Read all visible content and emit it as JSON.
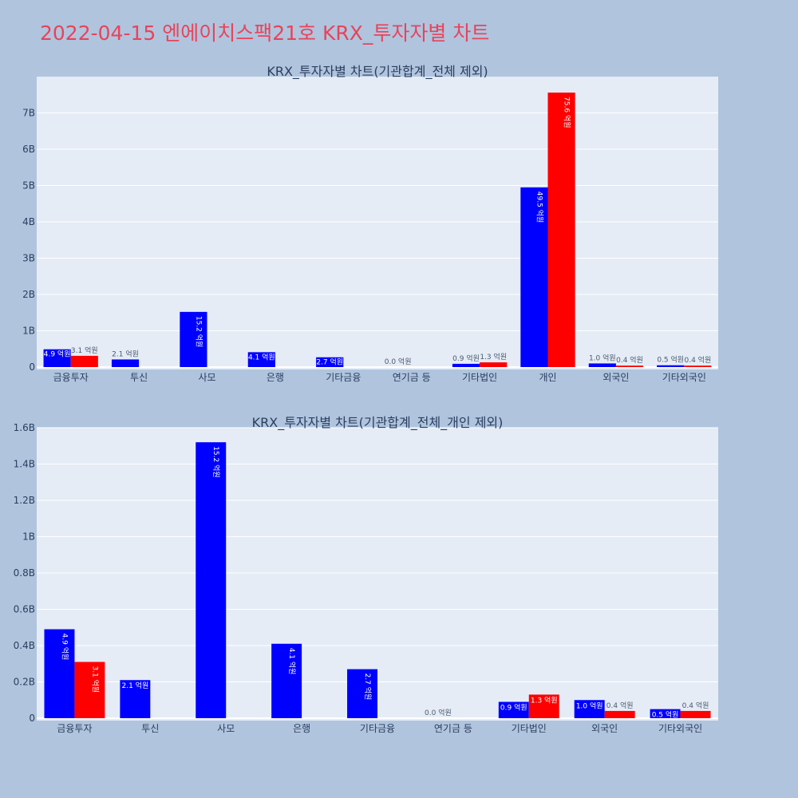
{
  "page": {
    "title": "2022-04-15 엔에이치스팩21호 KRX_투자자별 차트"
  },
  "colors": {
    "buy": "#0000ff",
    "sell": "#ff0000",
    "plot_bg": "#e5ecf6",
    "page_bg": "#b0c4de",
    "title": "#e8445a"
  },
  "chart_data": [
    {
      "type": "bar",
      "title": "KRX_투자자별 차트(기관합계_전체 제외)",
      "categories": [
        "금융투자",
        "투신",
        "사모",
        "은행",
        "기타금융",
        "연기금 등",
        "기타법인",
        "개인",
        "외국인",
        "기타외국인"
      ],
      "series": [
        {
          "values": [
            490000000,
            210000000,
            1520000000,
            410000000,
            270000000,
            0,
            90000000,
            4950000000,
            100000000,
            50000000
          ],
          "labels": [
            "4.9 억원",
            "2.1 억원",
            "15.2 억원",
            "4.1 억원",
            "2.7 억원",
            "0.0 억원",
            "0.9 억원",
            "49.5 억원",
            "1.0 억원",
            "0.5 억원"
          ]
        },
        {
          "values": [
            310000000,
            0,
            0,
            0,
            0,
            0,
            130000000,
            7560000000,
            40000000,
            40000000
          ],
          "labels": [
            "3.1 억원",
            "",
            "",
            "",
            "",
            "",
            "1.3 억원",
            "75.6 억원",
            "0.4 억원",
            "0.4 억원"
          ]
        }
      ],
      "ylim": [
        0,
        8000000000
      ],
      "ticks": [
        {
          "v": 0,
          "t": "0"
        },
        {
          "v": 1000000000,
          "t": "1B"
        },
        {
          "v": 2000000000,
          "t": "2B"
        },
        {
          "v": 3000000000,
          "t": "3B"
        },
        {
          "v": 4000000000,
          "t": "4B"
        },
        {
          "v": 5000000000,
          "t": "5B"
        },
        {
          "v": 6000000000,
          "t": "6B"
        },
        {
          "v": 7000000000,
          "t": "7B"
        }
      ],
      "grid": true,
      "legend": "none"
    },
    {
      "type": "bar",
      "title": "KRX_투자자별 차트(기관합계_전체_개인 제외)",
      "categories": [
        "금융투자",
        "투신",
        "사모",
        "은행",
        "기타금융",
        "연기금 등",
        "기타법인",
        "외국인",
        "기타외국인"
      ],
      "series": [
        {
          "values": [
            490000000,
            210000000,
            1520000000,
            410000000,
            270000000,
            0,
            90000000,
            100000000,
            50000000
          ],
          "labels": [
            "4.9 억원",
            "2.1 억원",
            "15.2 억원",
            "4.1 억원",
            "2.7 억원",
            "0.0 억원",
            "0.9 억원",
            "1.0 억원",
            "0.5 억원"
          ]
        },
        {
          "values": [
            310000000,
            0,
            0,
            0,
            0,
            0,
            130000000,
            40000000,
            40000000
          ],
          "labels": [
            "3.1 억원",
            "",
            "",
            "",
            "",
            "",
            "1.3 억원",
            "0.4 억원",
            "0.4 억원"
          ]
        }
      ],
      "ylim": [
        0,
        1600000000
      ],
      "ticks": [
        {
          "v": 0,
          "t": "0"
        },
        {
          "v": 200000000,
          "t": "0.2B"
        },
        {
          "v": 400000000,
          "t": "0.4B"
        },
        {
          "v": 600000000,
          "t": "0.6B"
        },
        {
          "v": 800000000,
          "t": "0.8B"
        },
        {
          "v": 1000000000,
          "t": "1B"
        },
        {
          "v": 1200000000,
          "t": "1.2B"
        },
        {
          "v": 1400000000,
          "t": "1.4B"
        },
        {
          "v": 1600000000,
          "t": "1.6B"
        }
      ],
      "grid": true,
      "legend": "none"
    }
  ]
}
